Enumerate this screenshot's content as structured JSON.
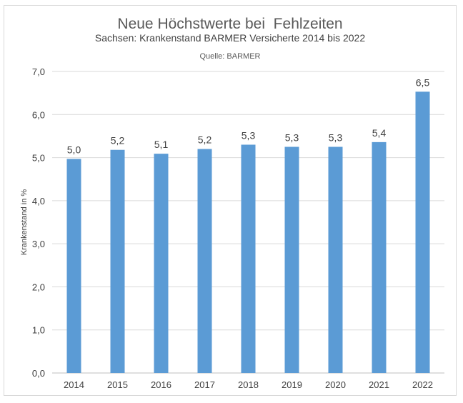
{
  "chart_data": {
    "type": "bar",
    "title": "Neue Höchstwerte bei  Fehlzeiten",
    "subtitle": "Sachsen: Krankenstand BARMER Versicherte 2014 bis 2022",
    "source": "Quelle: BARMER",
    "xlabel": "",
    "ylabel": "Krankenstand in %",
    "categories": [
      "2014",
      "2015",
      "2016",
      "2017",
      "2018",
      "2019",
      "2020",
      "2021",
      "2022"
    ],
    "values": [
      4.97,
      5.18,
      5.09,
      5.2,
      5.3,
      5.25,
      5.25,
      5.36,
      6.53
    ],
    "data_labels": [
      "5,0",
      "5,2",
      "5,1",
      "5,2",
      "5,3",
      "5,3",
      "5,3",
      "5,4",
      "6,5"
    ],
    "ylim": [
      0,
      7
    ],
    "yticks": [
      0,
      1,
      2,
      3,
      4,
      5,
      6,
      7
    ],
    "ytick_labels": [
      "0,0",
      "1,0",
      "2,0",
      "3,0",
      "4,0",
      "5,0",
      "6,0",
      "7,0"
    ],
    "grid": true,
    "legend": "none",
    "bar_color": "#5b9bd5",
    "grid_color": "#d9d9d9"
  }
}
